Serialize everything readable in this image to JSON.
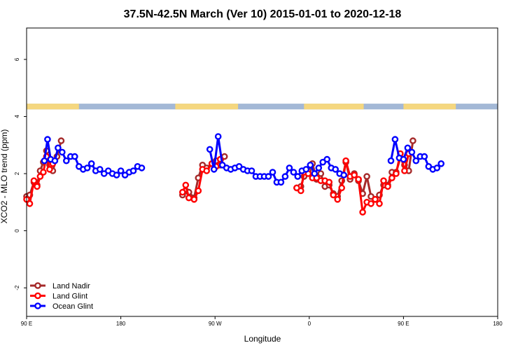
{
  "chart_data": {
    "type": "line",
    "title": "37.5N-42.5N March (Ver 10)   2015-01-01 to 2020-12-18",
    "xlabel": "Longitude",
    "ylabel": "XCO2 - MLO trend (ppm)",
    "xlim": [
      90,
      450
    ],
    "ylim": [
      -3,
      7.1
    ],
    "x_ticks": [
      {
        "value": 90,
        "label": "90 E"
      },
      {
        "value": 180,
        "label": "180"
      },
      {
        "value": 270,
        "label": "90 W"
      },
      {
        "value": 360,
        "label": "0"
      },
      {
        "value": 450,
        "label": "90 E"
      },
      {
        "value": 540,
        "label": "180"
      }
    ],
    "y_ticks": [
      {
        "value": -2,
        "label": "-2"
      },
      {
        "value": 0,
        "label": "0"
      },
      {
        "value": 2,
        "label": "2"
      },
      {
        "value": 4,
        "label": "4"
      },
      {
        "value": 6,
        "label": "6"
      }
    ],
    "x_axis_display": {
      "min": 90,
      "max": 540
    },
    "legend_position": "bottom-left",
    "land_mask_strip": {
      "y_range": [
        4.25,
        4.45
      ],
      "ocean_color": "#a3b8d6",
      "land_color": "#f5d77f",
      "land_longitudes": [
        [
          90,
          140
        ],
        [
          232,
          292
        ],
        [
          355,
          412
        ],
        [
          450,
          500
        ]
      ]
    },
    "series": [
      {
        "name": "Land Nadir",
        "color": "#a52a2a",
        "segments": [
          [
            [
              90,
              1.2
            ],
            [
              93,
              1.25
            ],
            [
              97,
              1.7
            ],
            [
              100,
              1.6
            ],
            [
              103,
              2.1
            ],
            [
              106,
              2.4
            ],
            [
              109,
              2.8
            ],
            [
              112,
              2.3
            ],
            [
              115,
              2.1
            ],
            [
              119,
              2.6
            ],
            [
              123,
              3.15
            ]
          ],
          [
            [
              239,
              1.25
            ],
            [
              242,
              1.4
            ],
            [
              245,
              1.35
            ],
            [
              250,
              1.15
            ],
            [
              254,
              1.85
            ],
            [
              258,
              2.3
            ],
            [
              262,
              2.2
            ],
            [
              267,
              2.35
            ],
            [
              271,
              2.45
            ],
            [
              275,
              2.3
            ],
            [
              279,
              2.6
            ]
          ],
          [
            [
              348,
              1.5
            ],
            [
              352,
              1.55
            ],
            [
              355,
              1.9
            ],
            [
              359,
              2.1
            ],
            [
              363,
              2.35
            ],
            [
              367,
              1.8
            ],
            [
              371,
              2.0
            ],
            [
              375,
              1.55
            ],
            [
              379,
              1.6
            ],
            [
              383,
              1.3
            ],
            [
              387,
              1.2
            ],
            [
              391,
              1.75
            ],
            [
              395,
              2.4
            ],
            [
              399,
              1.8
            ],
            [
              403,
              2.0
            ],
            [
              407,
              1.75
            ],
            [
              411,
              1.3
            ],
            [
              415,
              1.9
            ],
            [
              419,
              1.2
            ],
            [
              423,
              1.1
            ],
            [
              427,
              1.25
            ],
            [
              431,
              1.6
            ],
            [
              435,
              1.6
            ],
            [
              439,
              2.05
            ],
            [
              443,
              2.05
            ],
            [
              447,
              2.55
            ],
            [
              451,
              2.3
            ],
            [
              455,
              2.1
            ],
            [
              459,
              3.15
            ]
          ]
        ]
      },
      {
        "name": "Land Glint",
        "color": "#ff0000",
        "segments": [
          [
            [
              90,
              1.1
            ],
            [
              93,
              0.95
            ],
            [
              97,
              1.75
            ],
            [
              100,
              1.55
            ],
            [
              103,
              1.9
            ],
            [
              106,
              2.05
            ],
            [
              109,
              2.6
            ],
            [
              112,
              2.15
            ],
            [
              115,
              2.35
            ]
          ],
          [
            [
              239,
              1.35
            ],
            [
              242,
              1.6
            ],
            [
              245,
              1.15
            ],
            [
              250,
              1.1
            ],
            [
              254,
              1.4
            ],
            [
              258,
              2.15
            ],
            [
              262,
              2.1
            ],
            [
              267,
              2.35
            ],
            [
              271,
              2.25
            ],
            [
              275,
              2.5
            ]
          ],
          [
            [
              348,
              1.5
            ],
            [
              352,
              1.4
            ],
            [
              355,
              2.05
            ],
            [
              359,
              2.0
            ],
            [
              363,
              1.85
            ],
            [
              367,
              1.85
            ],
            [
              371,
              1.75
            ],
            [
              375,
              1.75
            ],
            [
              379,
              1.7
            ],
            [
              383,
              1.25
            ],
            [
              387,
              1.1
            ],
            [
              391,
              1.5
            ],
            [
              395,
              2.45
            ],
            [
              399,
              1.9
            ],
            [
              403,
              1.95
            ],
            [
              407,
              1.8
            ],
            [
              411,
              0.65
            ],
            [
              415,
              1.0
            ],
            [
              419,
              0.95
            ],
            [
              423,
              1.1
            ],
            [
              427,
              0.95
            ],
            [
              431,
              1.75
            ],
            [
              435,
              1.55
            ],
            [
              439,
              1.85
            ],
            [
              443,
              2.0
            ],
            [
              447,
              2.7
            ],
            [
              451,
              2.1
            ],
            [
              455,
              2.7
            ]
          ]
        ]
      },
      {
        "name": "Ocean Glint",
        "color": "#0000ff",
        "segments": [
          [
            [
              107,
              2.45
            ],
            [
              110,
              3.2
            ],
            [
              113,
              2.5
            ],
            [
              117,
              2.45
            ],
            [
              120,
              2.9
            ],
            [
              124,
              2.75
            ],
            [
              128,
              2.45
            ],
            [
              132,
              2.6
            ],
            [
              136,
              2.6
            ],
            [
              140,
              2.25
            ],
            [
              144,
              2.15
            ],
            [
              148,
              2.2
            ],
            [
              152,
              2.35
            ],
            [
              156,
              2.1
            ],
            [
              160,
              2.15
            ],
            [
              164,
              2.0
            ],
            [
              168,
              2.1
            ],
            [
              172,
              2.0
            ],
            [
              176,
              1.95
            ],
            [
              180,
              2.1
            ],
            [
              184,
              1.95
            ],
            [
              188,
              2.05
            ],
            [
              192,
              2.1
            ],
            [
              196,
              2.25
            ],
            [
              200,
              2.2
            ]
          ],
          [
            [
              265,
              2.85
            ],
            [
              269,
              2.15
            ],
            [
              273,
              3.3
            ],
            [
              277,
              2.3
            ],
            [
              281,
              2.2
            ],
            [
              285,
              2.15
            ],
            [
              289,
              2.2
            ],
            [
              293,
              2.25
            ],
            [
              297,
              2.15
            ],
            [
              301,
              2.1
            ],
            [
              305,
              2.1
            ],
            [
              309,
              1.9
            ],
            [
              313,
              1.9
            ],
            [
              317,
              1.9
            ],
            [
              321,
              1.9
            ],
            [
              325,
              2.05
            ],
            [
              329,
              1.7
            ],
            [
              333,
              1.7
            ],
            [
              337,
              1.9
            ],
            [
              341,
              2.2
            ],
            [
              345,
              2.05
            ],
            [
              349,
              1.9
            ],
            [
              353,
              2.1
            ],
            [
              357,
              2.15
            ],
            [
              361,
              2.3
            ],
            [
              365,
              2.0
            ],
            [
              369,
              2.2
            ],
            [
              373,
              2.4
            ],
            [
              377,
              2.5
            ],
            [
              381,
              2.2
            ],
            [
              385,
              2.15
            ],
            [
              389,
              2.0
            ],
            [
              393,
              1.95
            ]
          ],
          [
            [
              438,
              2.45
            ],
            [
              442,
              3.2
            ],
            [
              446,
              2.55
            ],
            [
              450,
              2.5
            ],
            [
              454,
              2.9
            ],
            [
              458,
              2.75
            ],
            [
              462,
              2.45
            ],
            [
              466,
              2.6
            ],
            [
              470,
              2.6
            ],
            [
              474,
              2.25
            ],
            [
              478,
              2.15
            ],
            [
              482,
              2.2
            ],
            [
              486,
              2.35
            ]
          ]
        ]
      }
    ]
  }
}
